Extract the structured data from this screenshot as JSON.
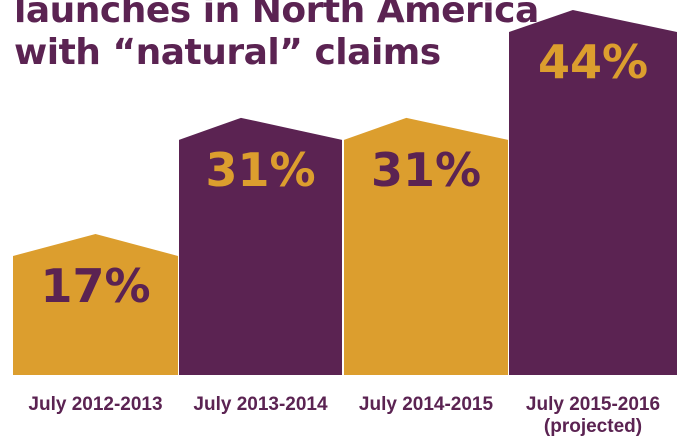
{
  "chart_data": {
    "type": "bar",
    "title_lines": [
      "launches in North America",
      "with “natural” claims"
    ],
    "categories": [
      "July 2012-2013",
      "July 2013-2014",
      "July 2014-2015",
      "July 2015-2016"
    ],
    "category_notes": [
      "",
      "",
      "",
      "(projected)"
    ],
    "values": [
      17,
      31,
      31,
      44
    ],
    "value_labels": [
      "17%",
      "31%",
      "31%",
      "44%"
    ],
    "ylim": [
      0,
      44
    ],
    "grid": false,
    "legend": "none",
    "colors": {
      "gold": "#dc9e2e",
      "purple": "#5b2352",
      "label_text": "#5b2352"
    },
    "bar_colors": [
      "gold",
      "purple",
      "gold",
      "purple"
    ],
    "value_label_colors": [
      "purple",
      "gold",
      "purple",
      "gold"
    ]
  }
}
